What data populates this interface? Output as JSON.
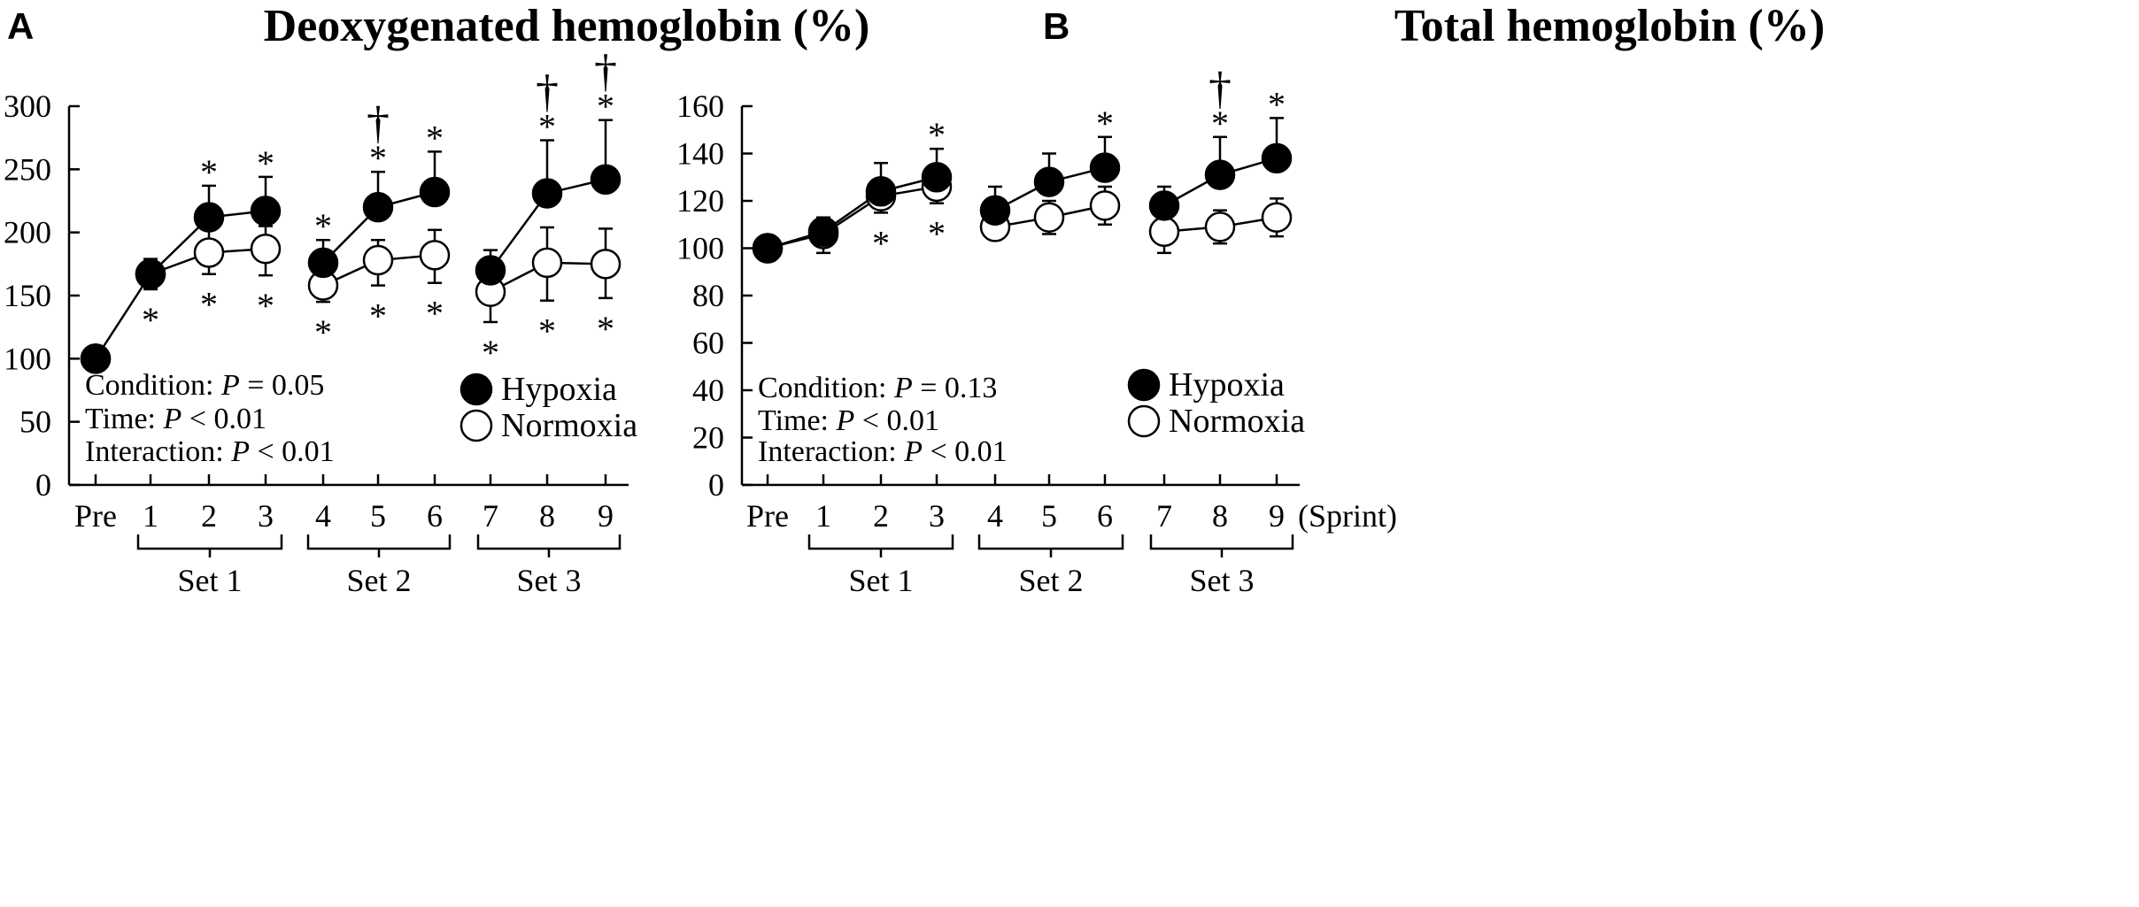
{
  "chart_data": [
    {
      "panel_letter": "A",
      "type": "line",
      "title": "Deoxygenated hemoglobin (%)",
      "ylim": [
        0,
        300
      ],
      "yticks": [
        0,
        50,
        100,
        150,
        200,
        250,
        300
      ],
      "categories": [
        "Pre",
        "1",
        "2",
        "3",
        "4",
        "5",
        "6",
        "7",
        "8",
        "9"
      ],
      "xlabel": "",
      "sets": [
        {
          "label": "Set 1",
          "from": "1",
          "to": "3"
        },
        {
          "label": "Set 2",
          "from": "4",
          "to": "6"
        },
        {
          "label": "Set 3",
          "from": "7",
          "to": "9"
        }
      ],
      "series": [
        {
          "name": "Hypoxia",
          "marker": "filled",
          "segments": [
            [
              0,
              3
            ],
            [
              4,
              6
            ],
            [
              7,
              9
            ]
          ],
          "values": [
            100,
            167,
            212,
            217,
            176,
            220,
            232,
            170,
            231,
            242
          ],
          "error_up": [
            0,
            12,
            25,
            27,
            18,
            28,
            32,
            16,
            42,
            47
          ],
          "error_down": [
            0,
            12,
            0,
            0,
            0,
            0,
            0,
            0,
            0,
            0
          ],
          "asterisk_above": [
            false,
            false,
            true,
            true,
            true,
            true,
            true,
            false,
            true,
            true
          ],
          "dagger_above": [
            false,
            false,
            false,
            false,
            false,
            true,
            false,
            false,
            true,
            true
          ]
        },
        {
          "name": "Normoxia",
          "marker": "open",
          "segments": [
            [
              1,
              3
            ],
            [
              4,
              6
            ],
            [
              7,
              9
            ]
          ],
          "values": [
            100,
            167,
            184,
            187,
            158,
            178,
            182,
            153,
            176,
            175
          ],
          "error_up": [
            0,
            10,
            18,
            18,
            12,
            16,
            20,
            12,
            28,
            28
          ],
          "error_down": [
            0,
            12,
            17,
            21,
            13,
            20,
            22,
            24,
            30,
            27
          ],
          "asterisk_below": [
            false,
            true,
            true,
            true,
            true,
            true,
            true,
            true,
            true,
            true
          ]
        }
      ],
      "stats": [
        {
          "label": "Condition: ",
          "p": "P",
          "rest": " = 0.05"
        },
        {
          "label": "Time: ",
          "p": "P",
          "rest": " < 0.01"
        },
        {
          "label": "Interaction: ",
          "p": "P",
          "rest": " < 0.01"
        }
      ],
      "symbols": {
        "asterisk": "*",
        "dagger": "†"
      },
      "legend": [
        "Hypoxia",
        "Normoxia"
      ]
    },
    {
      "panel_letter": "B",
      "type": "line",
      "title": "Total hemoglobin (%)",
      "ylim": [
        0,
        160
      ],
      "yticks": [
        0,
        20,
        40,
        60,
        80,
        100,
        120,
        140,
        160
      ],
      "categories": [
        "Pre",
        "1",
        "2",
        "3",
        "4",
        "5",
        "6",
        "7",
        "8",
        "9"
      ],
      "xlabel": "(Sprint)",
      "sets": [
        {
          "label": "Set 1",
          "from": "1",
          "to": "3"
        },
        {
          "label": "Set 2",
          "from": "4",
          "to": "6"
        },
        {
          "label": "Set 3",
          "from": "7",
          "to": "9"
        }
      ],
      "series": [
        {
          "name": "Hypoxia",
          "marker": "filled",
          "segments": [
            [
              0,
              3
            ],
            [
              4,
              6
            ],
            [
              7,
              9
            ]
          ],
          "values": [
            100,
            107,
            124,
            130,
            116,
            128,
            134,
            118,
            131,
            138
          ],
          "error_up": [
            0,
            6,
            12,
            12,
            10,
            12,
            13,
            8,
            16,
            17
          ],
          "error_down": [
            0,
            0,
            0,
            0,
            0,
            0,
            0,
            0,
            0,
            0
          ],
          "asterisk_above": [
            false,
            false,
            false,
            true,
            false,
            false,
            true,
            false,
            true,
            true
          ],
          "dagger_above": [
            false,
            false,
            false,
            false,
            false,
            false,
            false,
            false,
            true,
            false
          ]
        },
        {
          "name": "Normoxia",
          "marker": "open",
          "segments": [
            [
              0,
              3
            ],
            [
              4,
              6
            ],
            [
              7,
              9
            ]
          ],
          "values": [
            100,
            106,
            122,
            126,
            109,
            113,
            118,
            107,
            109,
            113
          ],
          "error_up": [
            0,
            7,
            5,
            6,
            4,
            7,
            8,
            8,
            7,
            8
          ],
          "error_down": [
            0,
            8,
            7,
            7,
            5,
            7,
            8,
            9,
            7,
            8
          ],
          "asterisk_below": [
            false,
            false,
            true,
            true,
            false,
            false,
            false,
            false,
            false,
            false
          ]
        }
      ],
      "stats": [
        {
          "label": "Condition: ",
          "p": "P",
          "rest": " = 0.13"
        },
        {
          "label": "Time: ",
          "p": "P",
          "rest": " < 0.01"
        },
        {
          "label": "Interaction: ",
          "p": "P",
          "rest": " < 0.01"
        }
      ],
      "symbols": {
        "asterisk": "*",
        "dagger": "†"
      },
      "legend": [
        "Hypoxia",
        "Normoxia"
      ]
    }
  ]
}
